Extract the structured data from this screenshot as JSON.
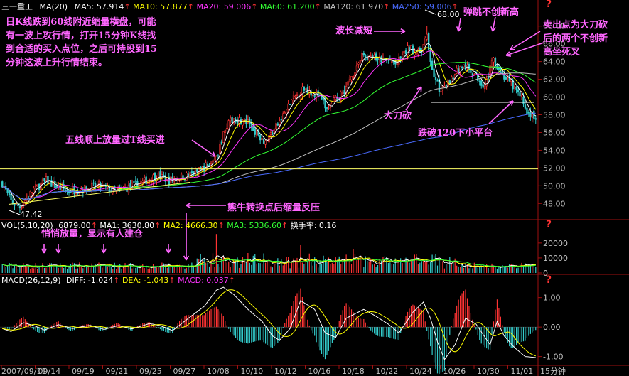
{
  "stock_name": "三一重工",
  "period": "15分钟",
  "header": {
    "ma_label": "MA(20)",
    "ma5": "MA5: 57.914",
    "ma10": "MA10: 57.877",
    "ma20": "MA20: 59.006",
    "ma60": "MA60: 61.200",
    "ma120": "MA120: 61.970",
    "ma250": "MA250: 59.006"
  },
  "vol_header": {
    "label": "VOL(5,10,20)",
    "vol": "6879.00",
    "ma1": "MA1: 3630.80",
    "ma2": "MA2: 4666.30",
    "ma3": "MA3: 5336.60",
    "turnover": "换手率: 0.16"
  },
  "macd_header": {
    "label": "MACD(26,12,9)",
    "diff": "DIFF: -1.024",
    "dea": "DEA: -1.043",
    "macd": "MACD: 0.037"
  },
  "arrow_glyph": "↑",
  "price_axis": [
    "68.00",
    "66.00",
    "64.00",
    "62.00",
    "60.00",
    "58.00",
    "56.00",
    "54.00",
    "52.00",
    "50.00",
    "48.00"
  ],
  "vol_axis": [
    "20000",
    "10000",
    "0"
  ],
  "macd_axis": [
    "1.00",
    "0.00",
    "-1.00"
  ],
  "question_mark": "?",
  "x_labels": [
    "2007/09/11",
    "09/14",
    "09/19",
    "09/21",
    "09/25",
    "09/27",
    "10/08",
    "10/10",
    "10/12",
    "10/16",
    "10/18",
    "10/22",
    "10/24",
    "10/26",
    "10/30",
    "11/01"
  ],
  "price_marks": {
    "high": "68.00",
    "low": "47.42"
  },
  "annotations": {
    "intro": [
      "日K线跌到60线附近缩量横盘，可能",
      "有一波上攻行情，打开15分钟K线找",
      "到合适的买入点位，之后可持股到15",
      "分钟这波上升行情结束。"
    ],
    "wave_short": "波长减短",
    "rebound": "弹跳不创新高",
    "sell": [
      "卖出点为大刀砍",
      "后的两个不创新",
      "高坐死叉"
    ],
    "big_chop": "大刀砍",
    "break_120": "跌破120下小平台",
    "five_line": "五线顺上放量过T线买进",
    "bear_bull": "熊牛转换点后缩量反压",
    "quiet_volume": "悄悄放量，显示有人建仓"
  },
  "colors": {
    "up": "#ff3333",
    "down": "#33cccc",
    "ma5": "#ffffff",
    "ma10": "#ffff00",
    "ma20": "#ff33ff",
    "ma60": "#33ff33",
    "ma120": "#c0c0c0",
    "ma250": "#4a6bff",
    "annotation": "#ff66ff",
    "axis": "#a01010"
  },
  "chart_data": {
    "type": "candlestick",
    "title": "三一重工",
    "price_range": [
      46.5,
      69.5
    ],
    "support_line": 51.9,
    "platform_line": 59.4,
    "price_knots": [
      [
        0,
        50.3
      ],
      [
        5,
        48.2
      ],
      [
        10,
        47.6
      ],
      [
        14,
        48.6
      ],
      [
        18,
        49.6
      ],
      [
        25,
        50.6
      ],
      [
        30,
        50.0
      ],
      [
        37,
        49.4
      ],
      [
        45,
        49.6
      ],
      [
        55,
        50.0
      ],
      [
        65,
        49.3
      ],
      [
        80,
        50.4
      ],
      [
        88,
        51.2
      ],
      [
        95,
        50.6
      ],
      [
        110,
        51.4
      ],
      [
        122,
        53.0
      ],
      [
        127,
        56.6
      ],
      [
        132,
        57.6
      ],
      [
        140,
        57.0
      ],
      [
        150,
        55.0
      ],
      [
        158,
        57.2
      ],
      [
        165,
        59.6
      ],
      [
        172,
        61.0
      ],
      [
        180,
        60.2
      ],
      [
        185,
        58.6
      ],
      [
        195,
        60.8
      ],
      [
        205,
        64.6
      ],
      [
        215,
        64.2
      ],
      [
        225,
        63.8
      ],
      [
        232,
        65.6
      ],
      [
        238,
        64.8
      ],
      [
        242,
        66.8
      ],
      [
        245,
        63.0
      ],
      [
        250,
        60.5
      ],
      [
        255,
        62.0
      ],
      [
        262,
        63.5
      ],
      [
        268,
        62.8
      ],
      [
        275,
        61.3
      ],
      [
        280,
        64.3
      ],
      [
        285,
        62.5
      ],
      [
        290,
        61.5
      ],
      [
        296,
        59.8
      ],
      [
        300,
        58.0
      ],
      [
        304,
        57.8
      ]
    ],
    "volume_range": [
      0,
      28000
    ],
    "macd_range": [
      -1.25,
      1.45
    ],
    "macd_knots": [
      [
        0,
        -0.05
      ],
      [
        5,
        -0.15
      ],
      [
        12,
        0.15
      ],
      [
        18,
        0.05
      ],
      [
        24,
        -0.1
      ],
      [
        32,
        0.08
      ],
      [
        40,
        -0.05
      ],
      [
        50,
        0.06
      ],
      [
        58,
        -0.08
      ],
      [
        66,
        0.05
      ],
      [
        74,
        -0.06
      ],
      [
        84,
        0.12
      ],
      [
        90,
        0.05
      ],
      [
        97,
        -0.12
      ],
      [
        105,
        0.25
      ],
      [
        115,
        0.7
      ],
      [
        122,
        1.25
      ],
      [
        126,
        1.35
      ],
      [
        132,
        1.1
      ],
      [
        140,
        0.6
      ],
      [
        148,
        0.2
      ],
      [
        154,
        -0.3
      ],
      [
        158,
        -0.45
      ],
      [
        164,
        -0.05
      ],
      [
        170,
        0.9
      ],
      [
        178,
        0.6
      ],
      [
        184,
        -0.2
      ],
      [
        190,
        -0.35
      ],
      [
        196,
        0.3
      ],
      [
        206,
        0.6
      ],
      [
        212,
        0.4
      ],
      [
        220,
        0.1
      ],
      [
        226,
        -0.2
      ],
      [
        234,
        0.5
      ],
      [
        240,
        0.85
      ],
      [
        244,
        0.3
      ],
      [
        248,
        -0.5
      ],
      [
        252,
        -1.1
      ],
      [
        258,
        -0.6
      ],
      [
        264,
        0.3
      ],
      [
        270,
        0.1
      ],
      [
        278,
        -0.6
      ],
      [
        282,
        0.2
      ],
      [
        286,
        -0.3
      ],
      [
        292,
        -0.7
      ],
      [
        298,
        -1.0
      ],
      [
        304,
        -1.03
      ]
    ]
  }
}
